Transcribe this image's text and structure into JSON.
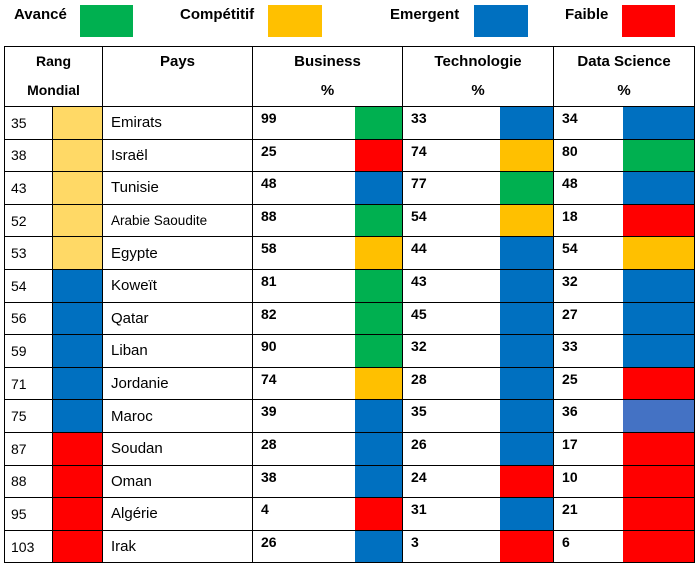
{
  "colors": {
    "avance": "#00B050",
    "competitif": "#FFC000",
    "emergent": "#0070C0",
    "faible": "#FF0000",
    "rank_top": "#FFD966",
    "maroc_ds": "#4472C4"
  },
  "legend": [
    {
      "label": "Avancé",
      "color": "#00B050"
    },
    {
      "label": "Compétitif",
      "color": "#FFC000"
    },
    {
      "label": "Emergent",
      "color": "#0070C0"
    },
    {
      "label": "Faible",
      "color": "#FF0000"
    }
  ],
  "headers": {
    "rang_line1": "Rang",
    "rang_line2": "Mondial",
    "pays": "Pays",
    "business_line1": "Business",
    "business_line2": "%",
    "technologie_line1": "Technologie",
    "technologie_line2": "%",
    "datascience_line1": "Data Science",
    "datascience_line2": "%"
  },
  "rows": [
    {
      "rang": "35",
      "rang_color": "#FFD966",
      "pays": "Emirats",
      "business": "99",
      "business_color": "#00B050",
      "technologie": "33",
      "technologie_color": "#0070C0",
      "datascience": "34",
      "datascience_color": "#0070C0"
    },
    {
      "rang": "38",
      "rang_color": "#FFD966",
      "pays": "Israël",
      "business": "25",
      "business_color": "#FF0000",
      "technologie": "74",
      "technologie_color": "#FFC000",
      "datascience": "80",
      "datascience_color": "#00B050"
    },
    {
      "rang": "43",
      "rang_color": "#FFD966",
      "pays": "Tunisie",
      "business": "48",
      "business_color": "#0070C0",
      "technologie": "77",
      "technologie_color": "#00B050",
      "datascience": "48",
      "datascience_color": "#0070C0"
    },
    {
      "rang": "52",
      "rang_color": "#FFD966",
      "pays": "Arabie Saoudite",
      "business": "88",
      "business_color": "#00B050",
      "technologie": "54",
      "technologie_color": "#FFC000",
      "datascience": "18",
      "datascience_color": "#FF0000"
    },
    {
      "rang": "53",
      "rang_color": "#FFD966",
      "pays": "Egypte",
      "business": "58",
      "business_color": "#FFC000",
      "technologie": "44",
      "technologie_color": "#0070C0",
      "datascience": "54",
      "datascience_color": "#FFC000"
    },
    {
      "rang": "54",
      "rang_color": "#0070C0",
      "pays": "Koweït",
      "business": "81",
      "business_color": "#00B050",
      "technologie": "43",
      "technologie_color": "#0070C0",
      "datascience": "32",
      "datascience_color": "#0070C0"
    },
    {
      "rang": "56",
      "rang_color": "#0070C0",
      "pays": "Qatar",
      "business": "82",
      "business_color": "#00B050",
      "technologie": "45",
      "technologie_color": "#0070C0",
      "datascience": "27",
      "datascience_color": "#0070C0"
    },
    {
      "rang": "59",
      "rang_color": "#0070C0",
      "pays": "Liban",
      "business": "90",
      "business_color": "#00B050",
      "technologie": "32",
      "technologie_color": "#0070C0",
      "datascience": "33",
      "datascience_color": "#0070C0"
    },
    {
      "rang": "71",
      "rang_color": "#0070C0",
      "pays": "Jordanie",
      "business": "74",
      "business_color": "#FFC000",
      "technologie": "28",
      "technologie_color": "#0070C0",
      "datascience": "25",
      "datascience_color": "#FF0000"
    },
    {
      "rang": "75",
      "rang_color": "#0070C0",
      "pays": "Maroc",
      "business": "39",
      "business_color": "#0070C0",
      "technologie": "35",
      "technologie_color": "#0070C0",
      "datascience": "36",
      "datascience_color": "#4472C4"
    },
    {
      "rang": "87",
      "rang_color": "#FF0000",
      "pays": "Soudan",
      "business": "28",
      "business_color": "#0070C0",
      "technologie": "26",
      "technologie_color": "#0070C0",
      "datascience": "17",
      "datascience_color": "#FF0000"
    },
    {
      "rang": "88",
      "rang_color": "#FF0000",
      "pays": "Oman",
      "business": "38",
      "business_color": "#0070C0",
      "technologie": "24",
      "technologie_color": "#FF0000",
      "datascience": "10",
      "datascience_color": "#FF0000"
    },
    {
      "rang": "95",
      "rang_color": "#FF0000",
      "pays": "Algérie",
      "business": "4",
      "business_color": "#FF0000",
      "technologie": "31",
      "technologie_color": "#0070C0",
      "datascience": "21",
      "datascience_color": "#FF0000"
    },
    {
      "rang": "103",
      "rang_color": "#FF0000",
      "pays": "Irak",
      "business": "26",
      "business_color": "#0070C0",
      "technologie": "3",
      "technologie_color": "#FF0000",
      "datascience": "6",
      "datascience_color": "#FF0000"
    }
  ]
}
